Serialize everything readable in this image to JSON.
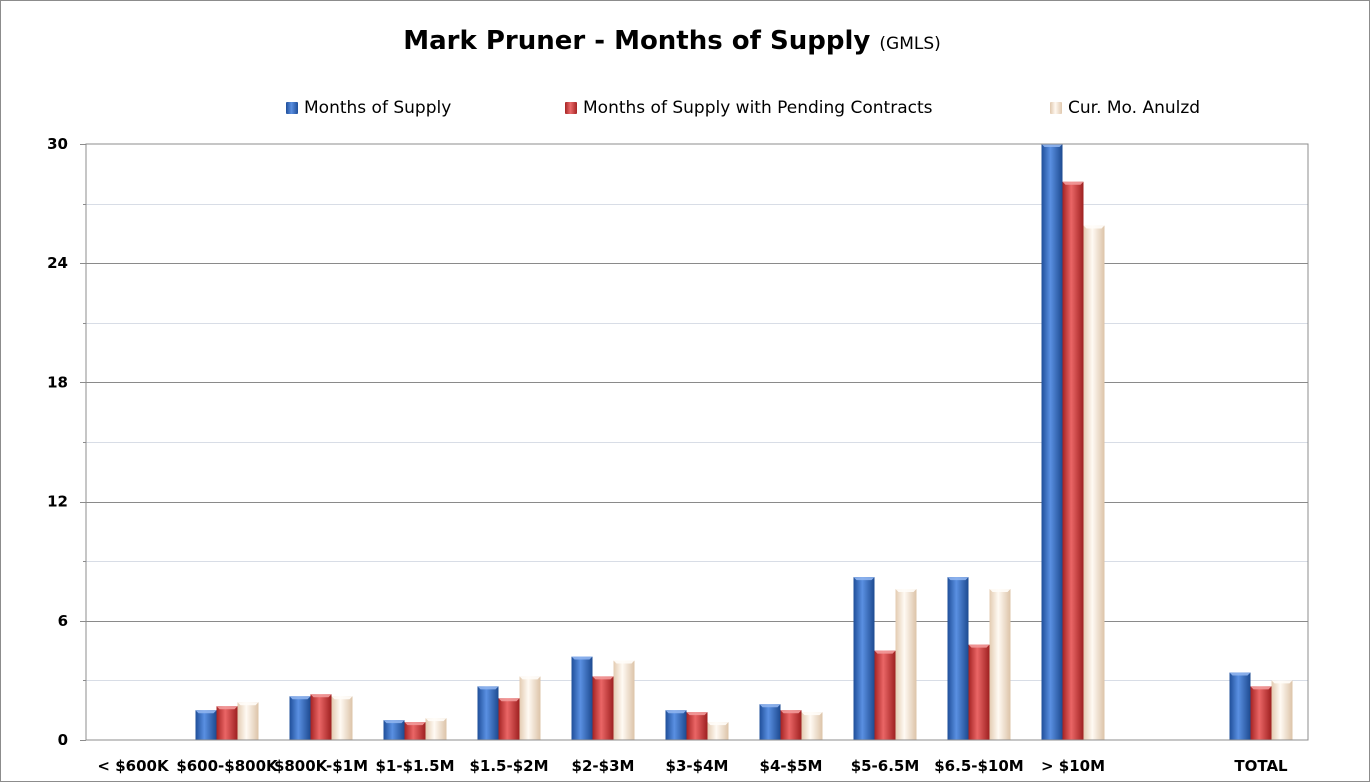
{
  "chart_data": {
    "type": "bar",
    "title": "Mark Pruner - Months of Supply",
    "subtitle": "(GMLS)",
    "categories": [
      "< $600K",
      "$600-$800K",
      "$800K-$1M",
      "$1-$1.5M",
      "$1.5-$2M",
      "$2-$3M",
      "$3-$4M",
      "$4-$5M",
      "$5-6.5M",
      "$6.5-$10M",
      "> $10M",
      "",
      "TOTAL"
    ],
    "series": [
      {
        "name": "Months of Supply",
        "color": "#2f6fc9",
        "values": [
          0,
          1.5,
          2.2,
          1.0,
          2.7,
          4.2,
          1.5,
          1.8,
          8.2,
          8.2,
          30,
          null,
          3.4
        ]
      },
      {
        "name": "Months of Supply with Pending Contracts",
        "color": "#d63c3c",
        "values": [
          0,
          1.7,
          2.3,
          0.9,
          2.1,
          3.2,
          1.4,
          1.5,
          4.5,
          4.8,
          28.1,
          null,
          2.7
        ]
      },
      {
        "name": "Cur. Mo. Anulzd",
        "color": "#f6e6d6",
        "values": [
          0,
          1.9,
          2.2,
          1.1,
          3.2,
          4.0,
          0.9,
          1.4,
          7.6,
          7.6,
          25.9,
          null,
          3.0
        ]
      }
    ],
    "y_ticks": [
      "0",
      "6",
      "12",
      "18",
      "24",
      "30"
    ],
    "ylim": [
      0,
      30
    ],
    "ylabel": "",
    "xlabel": "",
    "grid": true,
    "legend_position": "top"
  }
}
